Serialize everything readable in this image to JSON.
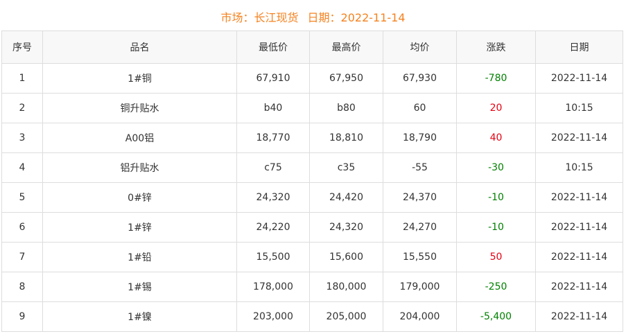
{
  "header": {
    "market_label": "市场：长江现货",
    "date_label": "日期：2022-11-14"
  },
  "colors": {
    "title": "#f5821f",
    "up": "#e60012",
    "down": "#008000"
  },
  "columns": [
    "序号",
    "品名",
    "最低价",
    "最高价",
    "均价",
    "涨跌",
    "日期"
  ],
  "rows": [
    {
      "no": "1",
      "name": "1#铜",
      "low": "67,910",
      "high": "67,950",
      "avg": "67,930",
      "change": "-780",
      "dir": "down",
      "date": "2022-11-14"
    },
    {
      "no": "2",
      "name": "铜升贴水",
      "low": "b40",
      "high": "b80",
      "avg": "60",
      "change": "20",
      "dir": "up",
      "date": "10:15"
    },
    {
      "no": "3",
      "name": "A00铝",
      "low": "18,770",
      "high": "18,810",
      "avg": "18,790",
      "change": "40",
      "dir": "up",
      "date": "2022-11-14"
    },
    {
      "no": "4",
      "name": "铝升贴水",
      "low": "c75",
      "high": "c35",
      "avg": "-55",
      "change": "-30",
      "dir": "down",
      "date": "10:15"
    },
    {
      "no": "5",
      "name": "0#锌",
      "low": "24,320",
      "high": "24,420",
      "avg": "24,370",
      "change": "-10",
      "dir": "down",
      "date": "2022-11-14"
    },
    {
      "no": "6",
      "name": "1#锌",
      "low": "24,220",
      "high": "24,320",
      "avg": "24,270",
      "change": "-10",
      "dir": "down",
      "date": "2022-11-14"
    },
    {
      "no": "7",
      "name": "1#铅",
      "low": "15,500",
      "high": "15,600",
      "avg": "15,550",
      "change": "50",
      "dir": "up",
      "date": "2022-11-14"
    },
    {
      "no": "8",
      "name": "1#锡",
      "low": "178,000",
      "high": "180,000",
      "avg": "179,000",
      "change": "-250",
      "dir": "down",
      "date": "2022-11-14"
    },
    {
      "no": "9",
      "name": "1#镍",
      "low": "203,000",
      "high": "205,000",
      "avg": "204,000",
      "change": "-5,400",
      "dir": "down",
      "date": "2022-11-14"
    }
  ]
}
